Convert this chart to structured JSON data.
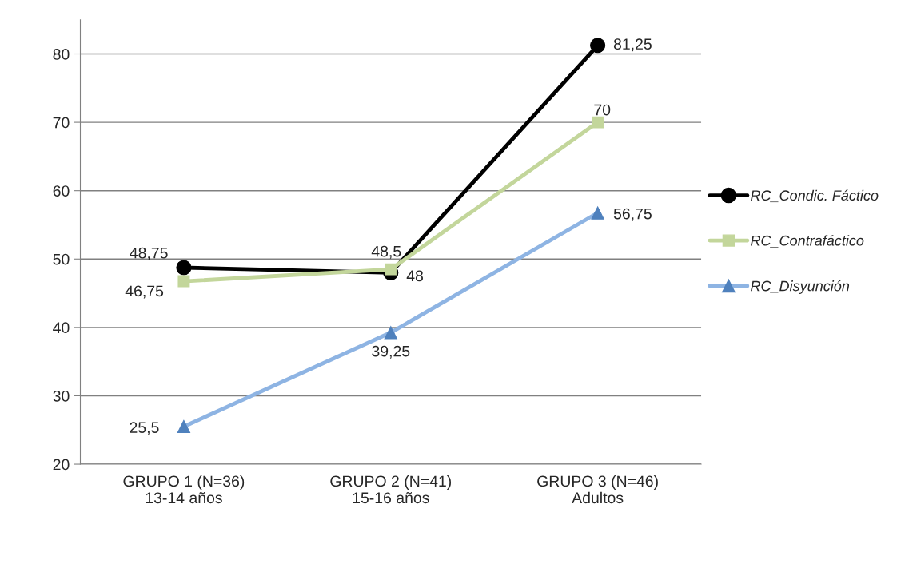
{
  "chart_data": {
    "type": "line",
    "categories": [
      "GRUPO 1 (N=36)\n13-14 años",
      "GRUPO 2 (N=41)\n15-16 años",
      "GRUPO 3 (N=46)\nAdultos"
    ],
    "series": [
      {
        "name": "RC_Condic. Fáctico",
        "color": "#000000",
        "marker": "circle",
        "values": [
          48.75,
          48,
          81.25
        ],
        "value_labels": [
          "48,75",
          "48",
          "81,25"
        ]
      },
      {
        "name": "RC_Contrafáctico",
        "color": "#c3d69b",
        "marker": "square",
        "values": [
          46.75,
          48.5,
          70
        ],
        "value_labels": [
          "46,75",
          "48,5",
          "70"
        ]
      },
      {
        "name": "RC_Disyunción",
        "color": "#8eb4e3",
        "marker": "triangle",
        "values": [
          25.5,
          39.25,
          56.75
        ],
        "value_labels": [
          "25,5",
          "39,25",
          "56,75"
        ]
      }
    ],
    "ylim": [
      20,
      85
    ],
    "yticks": [
      20,
      30,
      40,
      50,
      60,
      70,
      80
    ],
    "grid": "y",
    "legend": "right"
  }
}
